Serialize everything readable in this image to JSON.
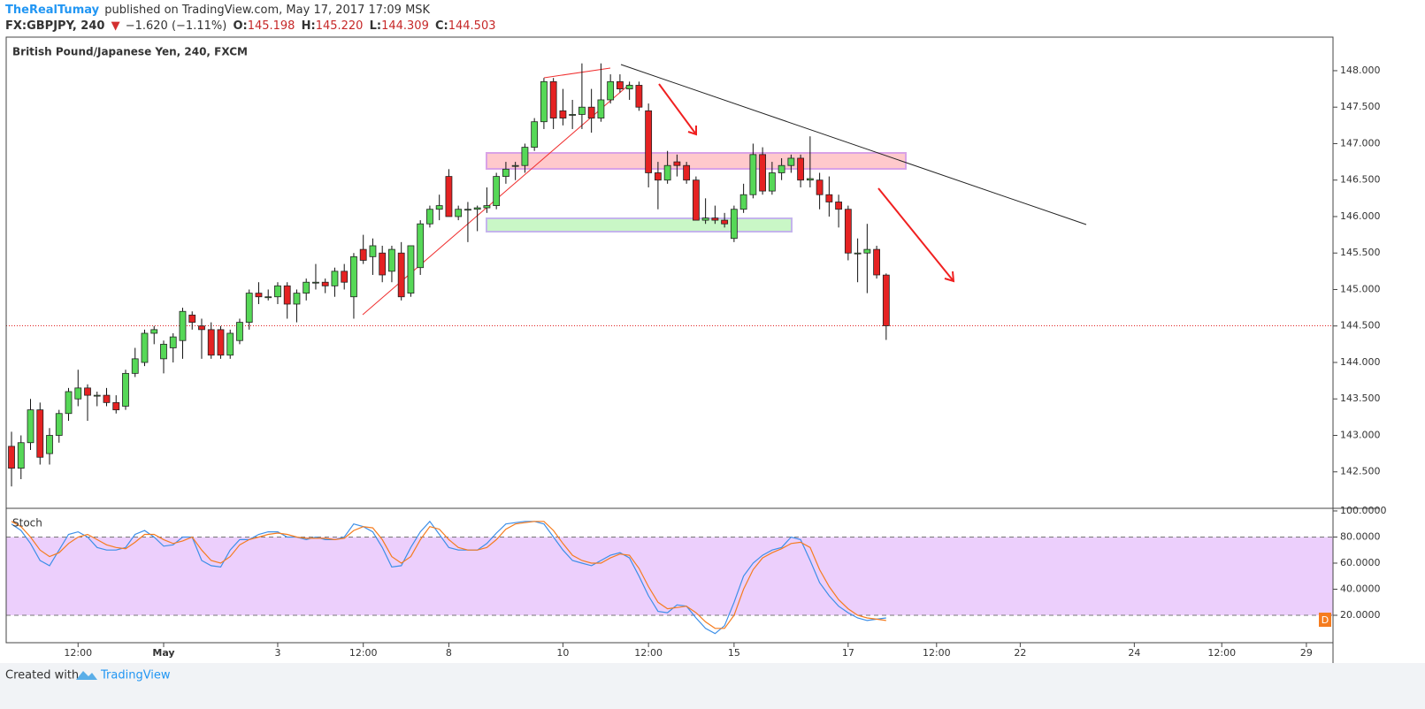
{
  "header": {
    "author": "TheRealTumay",
    "published": "published on TradingView.com, May 17, 2017 17:09 MSK",
    "symbol": "FX:GBPJPY, 240",
    "direction": "▼",
    "change": "−1.620 (−1.11%)",
    "o_label": "O:",
    "o": "145.198",
    "h_label": "H:",
    "h": "145.220",
    "l_label": "L:",
    "l": "144.309",
    "c_label": "C:",
    "c": "144.503"
  },
  "chart_data": [
    {
      "type": "candlestick",
      "title": "British Pound/Japanese Yen, 240, FXCM",
      "up_color": "#56d857",
      "down_color": "#e52222",
      "xlim": [
        -0.56,
        139
      ],
      "ylim": [
        142.0,
        148.46
      ],
      "xticks": [
        {
          "value": 7,
          "label": "12:00"
        },
        {
          "value": 16,
          "label": "May"
        },
        {
          "value": 28,
          "label": "3"
        },
        {
          "value": 37,
          "label": "12:00"
        },
        {
          "value": 46,
          "label": "8"
        },
        {
          "value": 58,
          "label": "10"
        },
        {
          "value": 67,
          "label": "12:00"
        },
        {
          "value": 76,
          "label": "15"
        },
        {
          "value": 88,
          "label": "17"
        },
        {
          "value": 97.3,
          "label": "12:00"
        },
        {
          "value": 106.1,
          "label": "22"
        },
        {
          "value": 118.1,
          "label": "24"
        },
        {
          "value": 127.3,
          "label": "12:00"
        },
        {
          "value": 136.2,
          "label": "29"
        }
      ],
      "yticks": [
        {
          "value": 142.5,
          "label": "142.500"
        },
        {
          "value": 143,
          "label": "143.000"
        },
        {
          "value": 143.5,
          "label": "143.500"
        },
        {
          "value": 144,
          "label": "144.000"
        },
        {
          "value": 144.5,
          "label": "144.500"
        },
        {
          "value": 145,
          "label": "145.000"
        },
        {
          "value": 145.5,
          "label": "145.500"
        },
        {
          "value": 146,
          "label": "146.000"
        },
        {
          "value": 146.5,
          "label": "146.500"
        },
        {
          "value": 147,
          "label": "147.000"
        },
        {
          "value": 147.5,
          "label": "147.500"
        },
        {
          "value": 148,
          "label": "148.000"
        }
      ],
      "ohlc": [
        [
          142.85,
          143.05,
          142.3,
          142.55
        ],
        [
          142.55,
          143.0,
          142.4,
          142.9
        ],
        [
          142.9,
          143.5,
          142.8,
          143.35
        ],
        [
          143.35,
          143.45,
          142.6,
          142.7
        ],
        [
          142.75,
          143.1,
          142.6,
          143.0
        ],
        [
          143.0,
          143.35,
          142.9,
          143.3
        ],
        [
          143.3,
          143.65,
          143.2,
          143.6
        ],
        [
          143.5,
          143.9,
          143.4,
          143.65
        ],
        [
          143.65,
          143.7,
          143.2,
          143.55
        ],
        [
          143.55,
          143.6,
          143.4,
          143.55
        ],
        [
          143.55,
          143.65,
          143.4,
          143.45
        ],
        [
          143.45,
          143.55,
          143.3,
          143.35
        ],
        [
          143.4,
          143.9,
          143.35,
          143.85
        ],
        [
          143.85,
          144.2,
          143.8,
          144.05
        ],
        [
          144.0,
          144.45,
          143.95,
          144.4
        ],
        [
          144.4,
          144.5,
          144.25,
          144.45
        ],
        [
          144.05,
          144.3,
          143.85,
          144.25
        ],
        [
          144.2,
          144.4,
          144.0,
          144.35
        ],
        [
          144.3,
          144.75,
          144.05,
          144.7
        ],
        [
          144.65,
          144.7,
          144.45,
          144.55
        ],
        [
          144.5,
          144.6,
          144.05,
          144.45
        ],
        [
          144.45,
          144.55,
          144.05,
          144.1
        ],
        [
          144.45,
          144.5,
          144.05,
          144.1
        ],
        [
          144.1,
          144.45,
          144.05,
          144.4
        ],
        [
          144.3,
          144.6,
          144.25,
          144.55
        ],
        [
          144.55,
          145.0,
          144.45,
          144.95
        ],
        [
          144.95,
          145.1,
          144.8,
          144.9
        ],
        [
          144.9,
          145.0,
          144.85,
          144.9
        ],
        [
          144.9,
          145.1,
          144.8,
          145.05
        ],
        [
          145.05,
          145.1,
          144.6,
          144.8
        ],
        [
          144.8,
          145.0,
          144.55,
          144.95
        ],
        [
          144.95,
          145.15,
          144.85,
          145.1
        ],
        [
          145.1,
          145.35,
          145.0,
          145.1
        ],
        [
          145.1,
          145.15,
          144.95,
          145.05
        ],
        [
          145.05,
          145.3,
          144.9,
          145.25
        ],
        [
          145.25,
          145.35,
          145.0,
          145.1
        ],
        [
          144.9,
          145.5,
          144.6,
          145.45
        ],
        [
          145.55,
          145.75,
          145.35,
          145.4
        ],
        [
          145.45,
          145.7,
          145.2,
          145.6
        ],
        [
          145.5,
          145.6,
          145.1,
          145.2
        ],
        [
          145.25,
          145.6,
          145.1,
          145.55
        ],
        [
          145.5,
          145.65,
          144.85,
          144.9
        ],
        [
          144.95,
          145.6,
          144.9,
          145.6
        ],
        [
          145.3,
          145.95,
          145.2,
          145.9
        ],
        [
          145.9,
          146.15,
          145.85,
          146.1
        ],
        [
          146.1,
          146.3,
          145.95,
          146.15
        ],
        [
          146.55,
          146.65,
          146.0,
          146.0
        ],
        [
          146.0,
          146.15,
          145.95,
          146.1
        ],
        [
          146.1,
          146.2,
          145.65,
          146.1
        ],
        [
          146.1,
          146.15,
          145.8,
          146.12
        ],
        [
          146.12,
          146.4,
          146.05,
          146.15
        ],
        [
          146.15,
          146.6,
          146.1,
          146.55
        ],
        [
          146.55,
          146.75,
          146.45,
          146.65
        ],
        [
          146.7,
          146.75,
          146.5,
          146.7
        ],
        [
          146.7,
          147.0,
          146.6,
          146.95
        ],
        [
          146.95,
          147.35,
          146.9,
          147.3
        ],
        [
          147.3,
          147.9,
          147.2,
          147.85
        ],
        [
          147.85,
          147.9,
          147.2,
          147.35
        ],
        [
          147.45,
          147.75,
          147.25,
          147.35
        ],
        [
          147.4,
          147.6,
          147.2,
          147.4
        ],
        [
          147.4,
          148.1,
          147.2,
          147.5
        ],
        [
          147.5,
          147.75,
          147.15,
          147.35
        ],
        [
          147.35,
          148.1,
          147.3,
          147.6
        ],
        [
          147.6,
          147.95,
          147.55,
          147.85
        ],
        [
          147.85,
          147.95,
          147.7,
          147.75
        ],
        [
          147.75,
          147.85,
          147.6,
          147.8
        ],
        [
          147.8,
          147.85,
          147.45,
          147.5
        ],
        [
          147.45,
          147.55,
          146.4,
          146.6
        ],
        [
          146.6,
          146.75,
          146.1,
          146.5
        ],
        [
          146.5,
          146.9,
          146.45,
          146.7
        ],
        [
          146.75,
          146.85,
          146.55,
          146.7
        ],
        [
          146.7,
          146.75,
          146.45,
          146.5
        ],
        [
          146.5,
          146.55,
          145.95,
          145.95
        ],
        [
          145.95,
          146.25,
          145.9,
          145.98
        ],
        [
          145.98,
          146.15,
          145.9,
          145.95
        ],
        [
          145.95,
          146.05,
          145.85,
          145.9
        ],
        [
          145.7,
          146.15,
          145.65,
          146.1
        ],
        [
          146.1,
          146.45,
          146.05,
          146.3
        ],
        [
          146.3,
          147.0,
          146.25,
          146.85
        ],
        [
          146.85,
          146.95,
          146.3,
          146.35
        ],
        [
          146.35,
          146.75,
          146.3,
          146.6
        ],
        [
          146.6,
          146.8,
          146.5,
          146.7
        ],
        [
          146.7,
          146.85,
          146.6,
          146.8
        ],
        [
          146.8,
          146.85,
          146.4,
          146.5
        ],
        [
          146.5,
          147.1,
          146.4,
          146.52
        ],
        [
          146.5,
          146.6,
          146.1,
          146.3
        ],
        [
          146.3,
          146.55,
          146.0,
          146.2
        ],
        [
          146.2,
          146.3,
          145.85,
          146.1
        ],
        [
          146.1,
          146.15,
          145.4,
          145.5
        ],
        [
          145.5,
          145.7,
          145.1,
          145.5
        ],
        [
          145.5,
          145.9,
          144.95,
          145.55
        ],
        [
          145.55,
          145.6,
          145.15,
          145.2
        ],
        [
          145.198,
          145.22,
          144.309,
          144.503
        ]
      ]
    },
    {
      "type": "line",
      "title": "Stoch",
      "badge": "D",
      "xlim": [
        -0.56,
        139
      ],
      "ylim": [
        -1,
        102
      ],
      "yticks": [
        {
          "value": 20,
          "label": "20.0000"
        },
        {
          "value": 40,
          "label": "40.0000"
        },
        {
          "value": 60,
          "label": "60.0000"
        },
        {
          "value": 80,
          "label": "80.0000"
        },
        {
          "value": 100,
          "label": "100.0000"
        }
      ],
      "band_color": "#eccffc",
      "series": [
        {
          "color": "#3d8fe8",
          "values": [
            90,
            85,
            75,
            62,
            58,
            70,
            82,
            84,
            80,
            72,
            70,
            70,
            72,
            82,
            85,
            80,
            73,
            74,
            80,
            80,
            62,
            58,
            57,
            70,
            78,
            78,
            82,
            84,
            84,
            80,
            80,
            78,
            80,
            78,
            78,
            80,
            90,
            88,
            84,
            72,
            57,
            58,
            72,
            84,
            92,
            82,
            72,
            70,
            70,
            70,
            75,
            83,
            90,
            91,
            92,
            92,
            90,
            80,
            70,
            62,
            60,
            58,
            62,
            66,
            68,
            64,
            50,
            35,
            23,
            22,
            28,
            27,
            18,
            10,
            6,
            12,
            30,
            50,
            60,
            66,
            70,
            72,
            80,
            78,
            62,
            45,
            35,
            27,
            22,
            18,
            16,
            17,
            18
          ]
        },
        {
          "color": "#f57c1f",
          "values": [
            92,
            88,
            80,
            70,
            65,
            68,
            75,
            80,
            82,
            78,
            74,
            72,
            71,
            76,
            82,
            82,
            78,
            75,
            77,
            80,
            70,
            62,
            60,
            65,
            74,
            78,
            80,
            82,
            83,
            82,
            80,
            79,
            79,
            79,
            78,
            79,
            85,
            88,
            87,
            78,
            65,
            60,
            65,
            78,
            88,
            86,
            78,
            72,
            70,
            70,
            72,
            78,
            86,
            90,
            91,
            92,
            92,
            85,
            75,
            66,
            62,
            60,
            60,
            64,
            67,
            66,
            56,
            42,
            30,
            25,
            26,
            27,
            22,
            15,
            10,
            10,
            20,
            40,
            55,
            64,
            68,
            71,
            75,
            76,
            72,
            55,
            42,
            32,
            25,
            20,
            18,
            17,
            16
          ]
        }
      ]
    }
  ],
  "footer": {
    "created": "Created with",
    "brand": "TradingView"
  }
}
